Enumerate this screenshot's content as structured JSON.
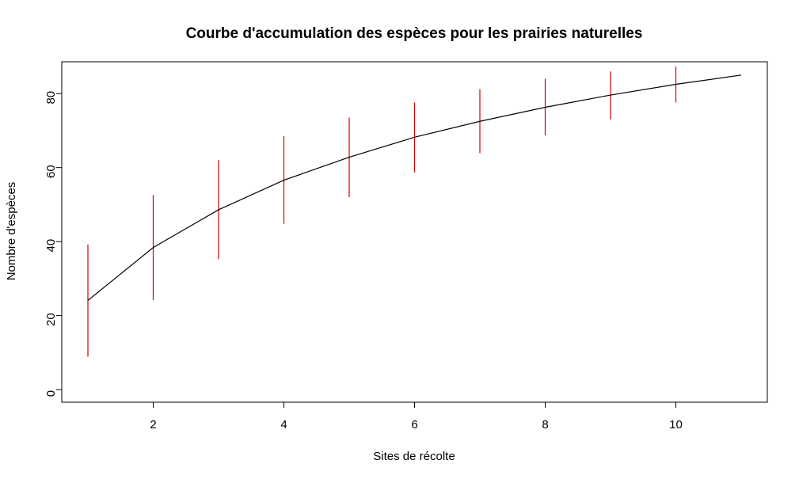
{
  "chart_data": {
    "type": "line",
    "title": "Courbe d'accumulation des espèces pour les prairies naturelles",
    "xlabel": "Sites de récolte",
    "ylabel": "Nombre d'espèces",
    "xlim": [
      0.6,
      11.4
    ],
    "ylim": [
      -3.4,
      88.6
    ],
    "x_ticks": [
      2,
      4,
      6,
      8,
      10
    ],
    "y_ticks": [
      0,
      20,
      40,
      60,
      80
    ],
    "grid": false,
    "legend": "none",
    "series": [
      {
        "x": [
          1,
          2,
          3,
          4,
          5,
          6,
          7,
          8,
          9,
          10,
          11
        ],
        "values": [
          24.1,
          38.4,
          48.6,
          56.6,
          62.8,
          68.2,
          72.5,
          76.3,
          79.6,
          82.5,
          85.0
        ],
        "color": "#000000"
      }
    ],
    "error_bars": {
      "color": "#d40000",
      "x": [
        1,
        2,
        3,
        4,
        5,
        6,
        7,
        8,
        9,
        10
      ],
      "lower": [
        8.9,
        24.2,
        35.3,
        44.8,
        52.0,
        58.7,
        63.9,
        68.7,
        73.0,
        77.6
      ],
      "upper": [
        39.2,
        52.6,
        62.0,
        68.5,
        73.5,
        77.6,
        81.2,
        84.0,
        86.0,
        87.3
      ]
    }
  }
}
